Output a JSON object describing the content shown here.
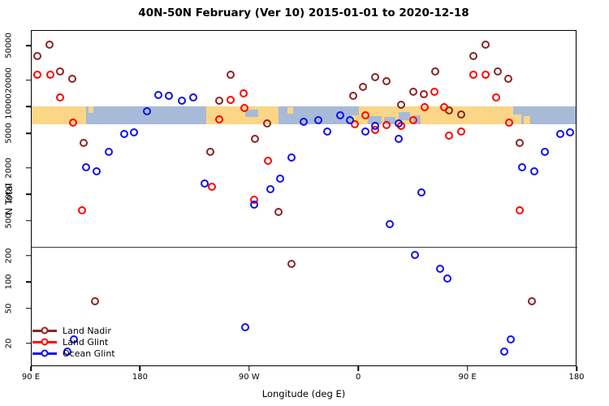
{
  "figure": {
    "title": "40N-50N February (Ver 10)   2015-01-01 to 2020-12-18"
  },
  "chart_data": {
    "type": "scatter",
    "title": "40N-50N February (Ver 10)   2015-01-01 to 2020-12-18",
    "xlabel": "Longitude (deg E)",
    "ylabel": "N Total",
    "x_unit_note": "longitude plotted continuously eastward from 90E; 90E-180E band repeated at right edge",
    "xlim": [
      90,
      540
    ],
    "x_ticks": [
      {
        "value": 90,
        "label": "90 E"
      },
      {
        "value": 180,
        "label": "180"
      },
      {
        "value": 270,
        "label": "90 W"
      },
      {
        "value": 360,
        "label": "0"
      },
      {
        "value": 450,
        "label": "90 E"
      },
      {
        "value": 540,
        "label": "180"
      }
    ],
    "y_scale": "log10",
    "ylim": [
      11,
      75000
    ],
    "y_ticks": [
      50000,
      20000,
      10000,
      5000,
      2000,
      1000,
      500,
      200,
      100,
      50,
      20
    ],
    "grid": false,
    "threshold_line_n": 250,
    "map_band": {
      "n_top": 10000,
      "n_bottom": 6300,
      "land_color": "#FBD687",
      "ocean_color": "#A7BAD7",
      "segments": [
        {
          "type": "land",
          "from": 90,
          "to": 136.2
        },
        {
          "type": "ocean",
          "from": 136.2,
          "to": 235.3
        },
        {
          "type": "land",
          "from": 235.3,
          "to": 294.9
        },
        {
          "type": "ocean",
          "from": 294.9,
          "to": 355.2
        },
        {
          "type": "land",
          "from": 355.2,
          "to": 495.1
        },
        {
          "type": "ocean",
          "from": 495.1,
          "to": 540
        }
      ],
      "patches": [
        {
          "type": "land",
          "from": 138,
          "to": 142,
          "topFrac": 0.0,
          "hFrac": 0.38
        },
        {
          "type": "land",
          "from": 302,
          "to": 307,
          "topFrac": 0.05,
          "hFrac": 0.38
        },
        {
          "type": "ocean",
          "from": 267,
          "to": 278,
          "topFrac": 0.18,
          "hFrac": 0.42
        },
        {
          "type": "ocean",
          "from": 355.2,
          "to": 361,
          "topFrac": 0.0,
          "hFrac": 0.5
        },
        {
          "type": "ocean",
          "from": 368,
          "to": 380,
          "topFrac": 0.55,
          "hFrac": 0.45
        },
        {
          "type": "ocean",
          "from": 382,
          "to": 391,
          "topFrac": 0.6,
          "hFrac": 0.4
        },
        {
          "type": "ocean",
          "from": 394,
          "to": 403,
          "topFrac": 0.35,
          "hFrac": 0.42
        },
        {
          "type": "ocean",
          "from": 406,
          "to": 412,
          "topFrac": 0.5,
          "hFrac": 0.5
        },
        {
          "type": "ocean",
          "from": 488,
          "to": 495.1,
          "topFrac": 0.0,
          "hFrac": 0.45
        },
        {
          "type": "land",
          "from": 497,
          "to": 502,
          "topFrac": 0.55,
          "hFrac": 0.45
        }
      ]
    },
    "legend": {
      "position": "bottom-left",
      "entries": [
        "Land Nadir",
        "Land Glint",
        "Ocean Glint"
      ]
    },
    "series": [
      {
        "name": "Land Nadir",
        "color": "#8B2323",
        "points": [
          [
            95.8,
            37800
          ],
          [
            105.9,
            50000
          ],
          [
            114.8,
            25100
          ],
          [
            124.8,
            20700
          ],
          [
            133.7,
            3800
          ],
          [
            143.6,
            60
          ],
          [
            238.2,
            3000
          ],
          [
            246.0,
            11500
          ],
          [
            255.0,
            22700
          ],
          [
            275.5,
            4230
          ],
          [
            285.6,
            6400
          ],
          [
            294.5,
            620
          ],
          [
            305.4,
            160
          ],
          [
            356.5,
            13300
          ],
          [
            364.6,
            16600
          ],
          [
            374.2,
            21500
          ],
          [
            383.8,
            19300
          ],
          [
            396.0,
            10350
          ],
          [
            405.5,
            14500
          ],
          [
            414.4,
            13600
          ],
          [
            424.0,
            25100
          ],
          [
            435.0,
            8900
          ],
          [
            445.5,
            8100
          ],
          [
            455.6,
            37800
          ],
          [
            465.2,
            50000
          ],
          [
            475.3,
            25100
          ],
          [
            484.3,
            20700
          ],
          [
            493.6,
            3800
          ],
          [
            503.6,
            60
          ]
        ]
      },
      {
        "name": "Land Glint",
        "color": "#FF0000",
        "points": [
          [
            95.8,
            22700
          ],
          [
            106.3,
            22700
          ],
          [
            114.8,
            12650
          ],
          [
            125.5,
            6460
          ],
          [
            132.9,
            650
          ],
          [
            239.8,
            1210
          ],
          [
            245.8,
            7040
          ],
          [
            255.4,
            11950
          ],
          [
            266.1,
            14050
          ],
          [
            266.6,
            9550
          ],
          [
            274.4,
            865
          ],
          [
            286.0,
            2370
          ],
          [
            357.4,
            6240
          ],
          [
            366.6,
            7940
          ],
          [
            374.6,
            5430
          ],
          [
            384.0,
            6150
          ],
          [
            396.0,
            6030
          ],
          [
            405.7,
            6920
          ],
          [
            415.5,
            9750
          ],
          [
            422.9,
            14600
          ],
          [
            431.0,
            9800
          ],
          [
            435.1,
            4600
          ],
          [
            445.1,
            5160
          ],
          [
            455.2,
            22700
          ],
          [
            465.2,
            22700
          ],
          [
            474.2,
            12650
          ],
          [
            484.7,
            6460
          ],
          [
            493.2,
            650
          ]
        ]
      },
      {
        "name": "Ocean Glint",
        "color": "#0F0FEE",
        "points": [
          [
            120.8,
            15.8
          ],
          [
            126.0,
            22
          ],
          [
            136.0,
            2015
          ],
          [
            144.4,
            1815
          ],
          [
            155.0,
            3020
          ],
          [
            167.2,
            4810
          ],
          [
            175.5,
            5060
          ],
          [
            186.2,
            8870
          ],
          [
            195.8,
            13580
          ],
          [
            204.0,
            13300
          ],
          [
            215.2,
            11640
          ],
          [
            224.1,
            12650
          ],
          [
            233.8,
            1310
          ],
          [
            267.0,
            30
          ],
          [
            274.4,
            755
          ],
          [
            287.8,
            1130
          ],
          [
            296.1,
            1500
          ],
          [
            305.6,
            2620
          ],
          [
            315.2,
            6700
          ],
          [
            327.5,
            6930
          ],
          [
            334.6,
            5150
          ],
          [
            345.8,
            7890
          ],
          [
            353.6,
            6930
          ],
          [
            366.4,
            5120
          ],
          [
            374.4,
            6030
          ],
          [
            386.5,
            452
          ],
          [
            393.8,
            6380
          ],
          [
            393.8,
            4240
          ],
          [
            407.3,
            203
          ],
          [
            412.8,
            1045
          ],
          [
            427.8,
            140
          ],
          [
            434.1,
            109
          ],
          [
            480.8,
            15.8
          ],
          [
            486.0,
            22
          ],
          [
            495.4,
            2015
          ],
          [
            505.5,
            1815
          ],
          [
            514.4,
            3020
          ],
          [
            527.2,
            4810
          ],
          [
            535.0,
            5060
          ]
        ]
      }
    ]
  }
}
